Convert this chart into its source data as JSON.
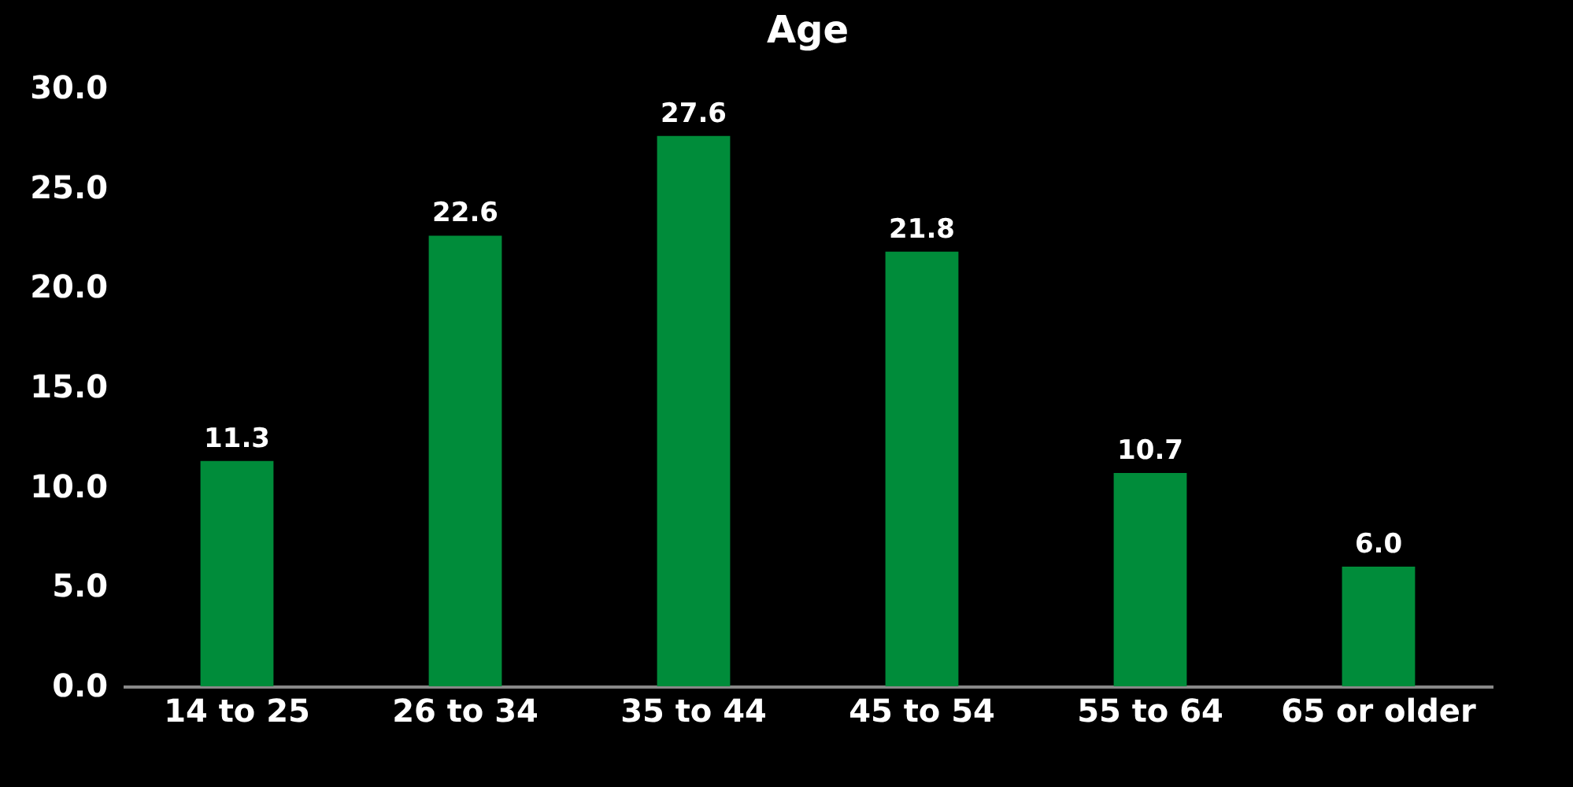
{
  "chart_data": {
    "type": "bar",
    "title": "Age",
    "categories": [
      "14 to 25",
      "26 to 34",
      "35 to 44",
      "45 to 54",
      "55 to 64",
      "65 or older"
    ],
    "values": [
      11.3,
      22.6,
      27.6,
      21.8,
      10.7,
      6.0
    ],
    "value_labels": [
      "11.3",
      "22.6",
      "27.6",
      "21.8",
      "10.7",
      "6.0"
    ],
    "color": "#008c3a",
    "ylim": [
      0,
      30
    ],
    "yticks": [
      {
        "value": 0,
        "label": "0.0"
      },
      {
        "value": 5,
        "label": "5.0"
      },
      {
        "value": 10,
        "label": "10.0"
      },
      {
        "value": 15,
        "label": "15.0"
      },
      {
        "value": 20,
        "label": "20.0"
      },
      {
        "value": 25,
        "label": "25.0"
      },
      {
        "value": 30,
        "label": "30.0"
      }
    ],
    "grid": false
  }
}
